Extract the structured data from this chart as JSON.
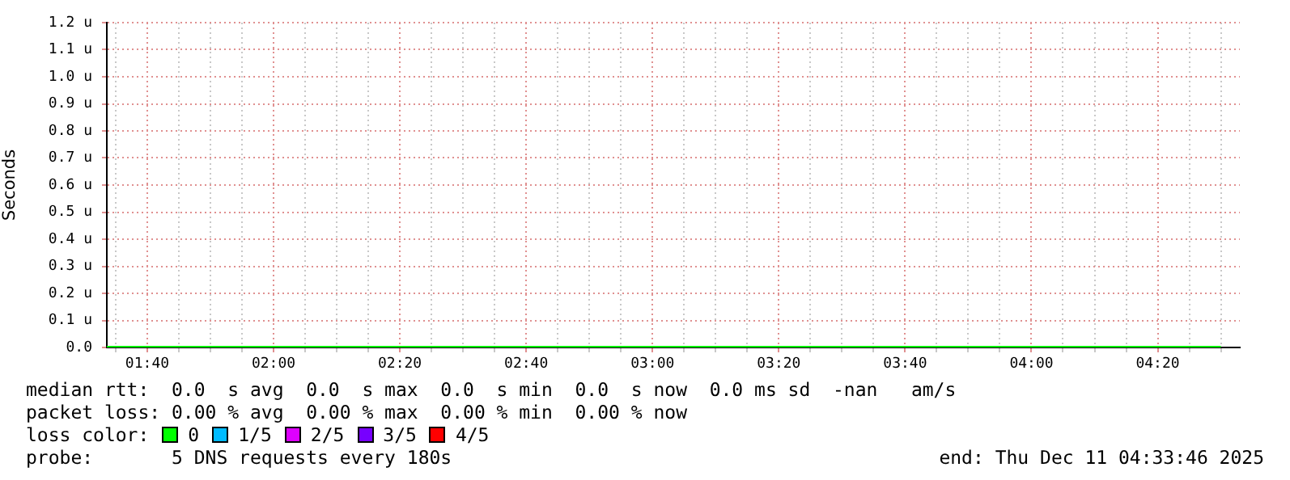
{
  "chart_data": {
    "type": "line",
    "ylabel": "Seconds",
    "x": [
      1.56,
      4.5
    ],
    "series": [
      {
        "color": "#00ff00",
        "values": [
          0,
          0
        ]
      }
    ],
    "xlim": [
      1.56,
      4.55
    ],
    "xticks": [
      {
        "value": 1.5833,
        "label": null
      },
      {
        "value": 1.6667,
        "label": "01:40"
      },
      {
        "value": 1.75,
        "label": null
      },
      {
        "value": 1.8333,
        "label": null
      },
      {
        "value": 1.9167,
        "label": null
      },
      {
        "value": 2,
        "label": "02:00"
      },
      {
        "value": 2.0833,
        "label": null
      },
      {
        "value": 2.1667,
        "label": null
      },
      {
        "value": 2.25,
        "label": null
      },
      {
        "value": 2.3333,
        "label": "02:20"
      },
      {
        "value": 2.4167,
        "label": null
      },
      {
        "value": 2.5,
        "label": null
      },
      {
        "value": 2.5833,
        "label": null
      },
      {
        "value": 2.6667,
        "label": "02:40"
      },
      {
        "value": 2.75,
        "label": null
      },
      {
        "value": 2.8333,
        "label": null
      },
      {
        "value": 2.9167,
        "label": null
      },
      {
        "value": 3,
        "label": "03:00"
      },
      {
        "value": 3.0833,
        "label": null
      },
      {
        "value": 3.1667,
        "label": null
      },
      {
        "value": 3.25,
        "label": null
      },
      {
        "value": 3.3333,
        "label": "03:20"
      },
      {
        "value": 3.4167,
        "label": null
      },
      {
        "value": 3.5,
        "label": null
      },
      {
        "value": 3.5833,
        "label": null
      },
      {
        "value": 3.6667,
        "label": "03:40"
      },
      {
        "value": 3.75,
        "label": null
      },
      {
        "value": 3.8333,
        "label": null
      },
      {
        "value": 3.9167,
        "label": null
      },
      {
        "value": 4,
        "label": "04:00"
      },
      {
        "value": 4.0833,
        "label": null
      },
      {
        "value": 4.1667,
        "label": null
      },
      {
        "value": 4.25,
        "label": null
      },
      {
        "value": 4.3333,
        "label": "04:20"
      },
      {
        "value": 4.4167,
        "label": null
      },
      {
        "value": 4.5,
        "label": null
      }
    ],
    "ylim": [
      0,
      1.2
    ],
    "yticks": [
      {
        "value": 0,
        "label": "0.0"
      },
      {
        "value": 0.1,
        "label": "0.1 u"
      },
      {
        "value": 0.2,
        "label": "0.2 u"
      },
      {
        "value": 0.3,
        "label": "0.3 u"
      },
      {
        "value": 0.4,
        "label": "0.4 u"
      },
      {
        "value": 0.5,
        "label": "0.5 u"
      },
      {
        "value": 0.6,
        "label": "0.6 u"
      },
      {
        "value": 0.7,
        "label": "0.7 u"
      },
      {
        "value": 0.8,
        "label": "0.8 u"
      },
      {
        "value": 0.9,
        "label": "0.9 u"
      },
      {
        "value": 1,
        "label": "1.0 u"
      },
      {
        "value": 1.1,
        "label": "1.1 u"
      },
      {
        "value": 1.2,
        "label": "1.2 u"
      }
    ],
    "grid": true,
    "marker": "none",
    "line_style": "solid",
    "legend": false,
    "annotations": [
      "median rtt:  0.0  s avg  0.0  s max  0.0  s min  0.0  s now  0.0 ms sd  -nan   am/s",
      "packet loss: 0.00 % avg  0.00 % max  0.00 % min  0.00 % now",
      "loss color:",
      "0",
      "1/5",
      "2/5",
      "3/5",
      "4/5",
      "probe:       5 DNS requests every 180s",
      "end: Thu Dec 11 04:33:46 2025"
    ]
  }
}
